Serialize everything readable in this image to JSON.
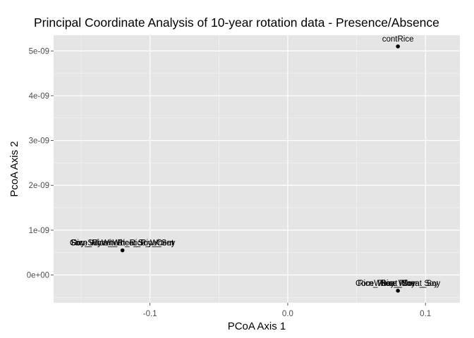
{
  "chart_data": {
    "type": "scatter",
    "title": "Principal Coordinate Analysis of 10-year rotation data - Presence/Absence",
    "xlabel": "PCoA Axis 1",
    "ylabel": "PcoA Axis 2",
    "xlim": [
      -0.17,
      0.125
    ],
    "ylim": [
      -6.2e-10,
      5.35e-09
    ],
    "x_ticks": [
      -0.1,
      0.0,
      0.1
    ],
    "x_tick_labels": [
      "-0.1",
      "0.0",
      "0.1"
    ],
    "y_ticks": [
      0,
      1e-09,
      2e-09,
      3e-09,
      4e-09,
      5e-09
    ],
    "y_tick_labels": [
      "0e+00",
      "1e-09",
      "2e-09",
      "3e-09",
      "4e-09",
      "5e-09"
    ],
    "grid": true,
    "colors": {
      "panel": "#e5e5e5",
      "grid": "#ffffff",
      "point": "#000000"
    },
    "points": [
      {
        "x": 0.08,
        "y": 5.1e-09,
        "labels": [
          "contRice"
        ]
      },
      {
        "x": -0.12,
        "y": 5.5e-10,
        "labels": [
          "Corn_Rice_Wheat_Rice_Soy",
          "RiceSoyWheat_Rice_Wheat",
          "Soy_Wheat_Rice_Soy_Corn"
        ]
      },
      {
        "x": 0.08,
        "y": -3.5e-10,
        "labels": [
          "Rice_Soy",
          "Soy_Rice",
          "RiceWheat_Corn_Soy",
          "Corn_Rice_Wheat_Soy"
        ]
      }
    ]
  }
}
